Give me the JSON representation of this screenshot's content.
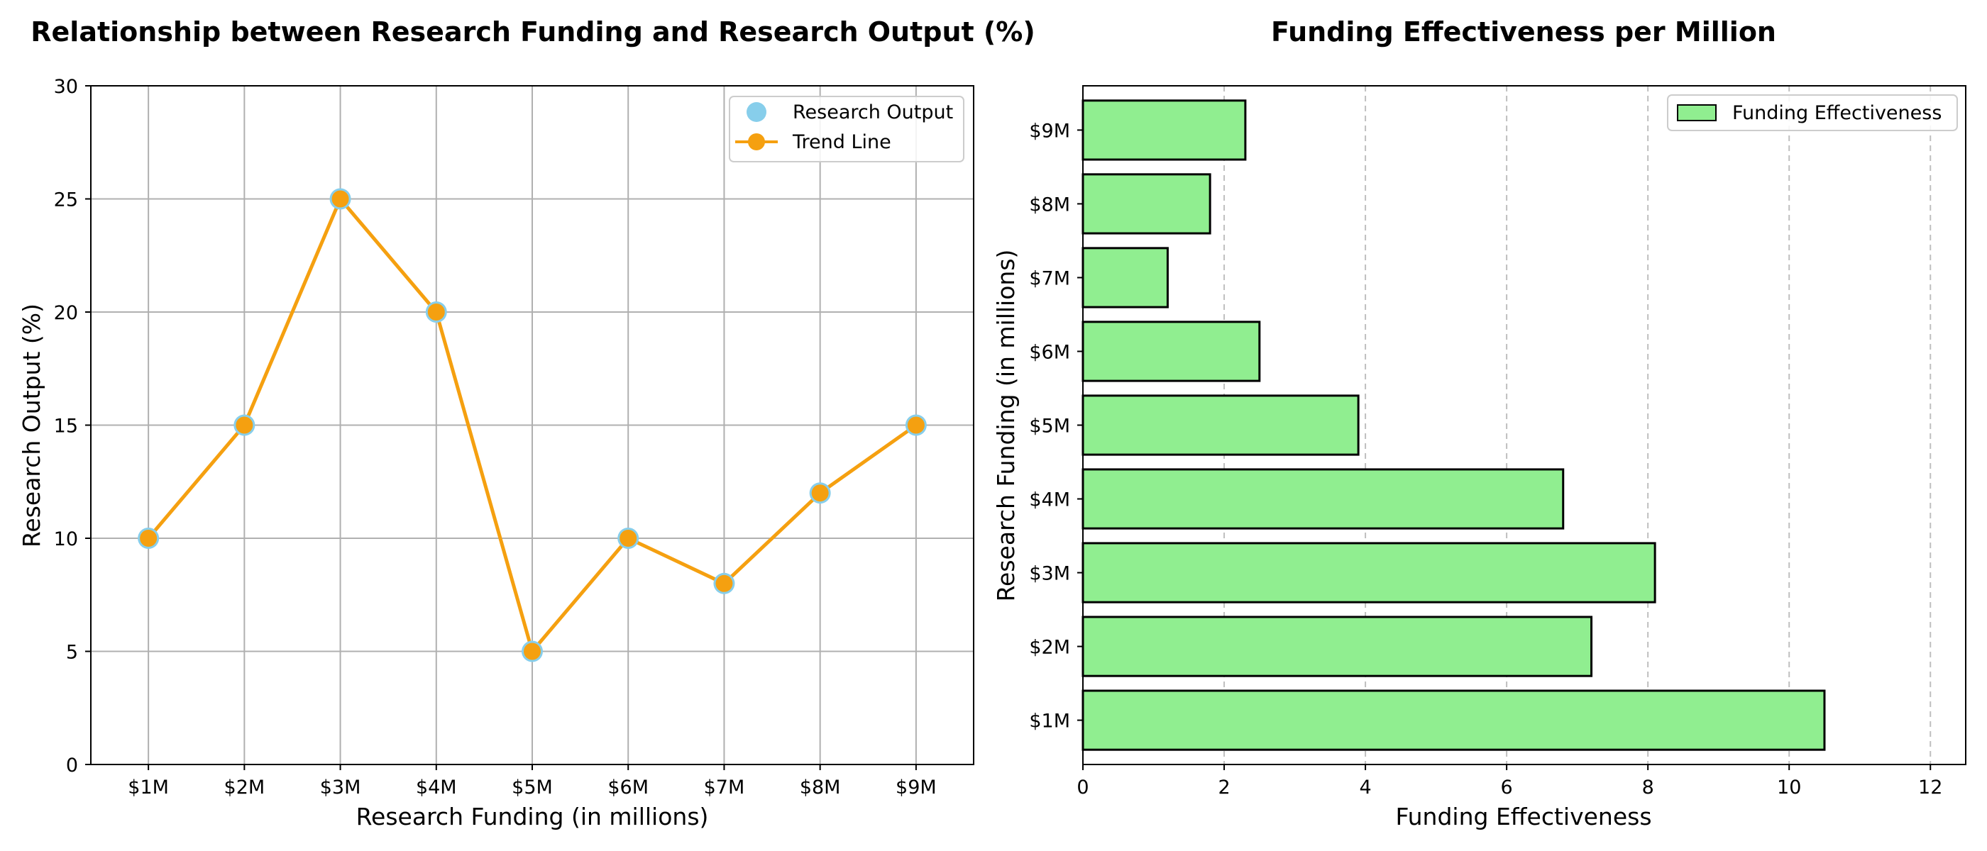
{
  "chart_data": [
    {
      "type": "line",
      "title": "Relationship between Research Funding and Research Output (%)",
      "xlabel": "Research Funding (in millions)",
      "ylabel": "Research Output (%)",
      "categories": [
        "$1M",
        "$2M",
        "$3M",
        "$4M",
        "$5M",
        "$6M",
        "$7M",
        "$8M",
        "$9M"
      ],
      "ylim": [
        0,
        30
      ],
      "yticks": [
        0,
        5,
        10,
        15,
        20,
        25,
        30
      ],
      "grid": true,
      "legend_position": "top-right",
      "series": [
        {
          "name": "Research Output",
          "kind": "scatter",
          "color": "#87ceeb",
          "values": [
            10,
            15,
            25,
            20,
            5,
            10,
            8,
            12,
            15
          ]
        },
        {
          "name": "Trend Line",
          "kind": "line",
          "color": "#f5a010",
          "values": [
            10,
            15,
            25,
            20,
            5,
            10,
            8,
            12,
            15
          ]
        }
      ]
    },
    {
      "type": "bar",
      "orientation": "horizontal",
      "title": "Funding Effectiveness per Million",
      "xlabel": "Funding Effectiveness",
      "ylabel": "Research Funding (in millions)",
      "categories": [
        "$1M",
        "$2M",
        "$3M",
        "$4M",
        "$5M",
        "$6M",
        "$7M",
        "$8M",
        "$9M"
      ],
      "xlim": [
        0,
        12.5
      ],
      "xticks": [
        0,
        2,
        4,
        6,
        8,
        10,
        12
      ],
      "grid": "x-dashed",
      "legend_position": "top-right",
      "series": [
        {
          "name": "Funding Effectiveness",
          "color": "#90ee90",
          "edgecolor": "#000000",
          "values": [
            10.5,
            7.2,
            8.1,
            6.8,
            3.9,
            2.5,
            1.2,
            1.8,
            2.3
          ]
        }
      ]
    }
  ]
}
